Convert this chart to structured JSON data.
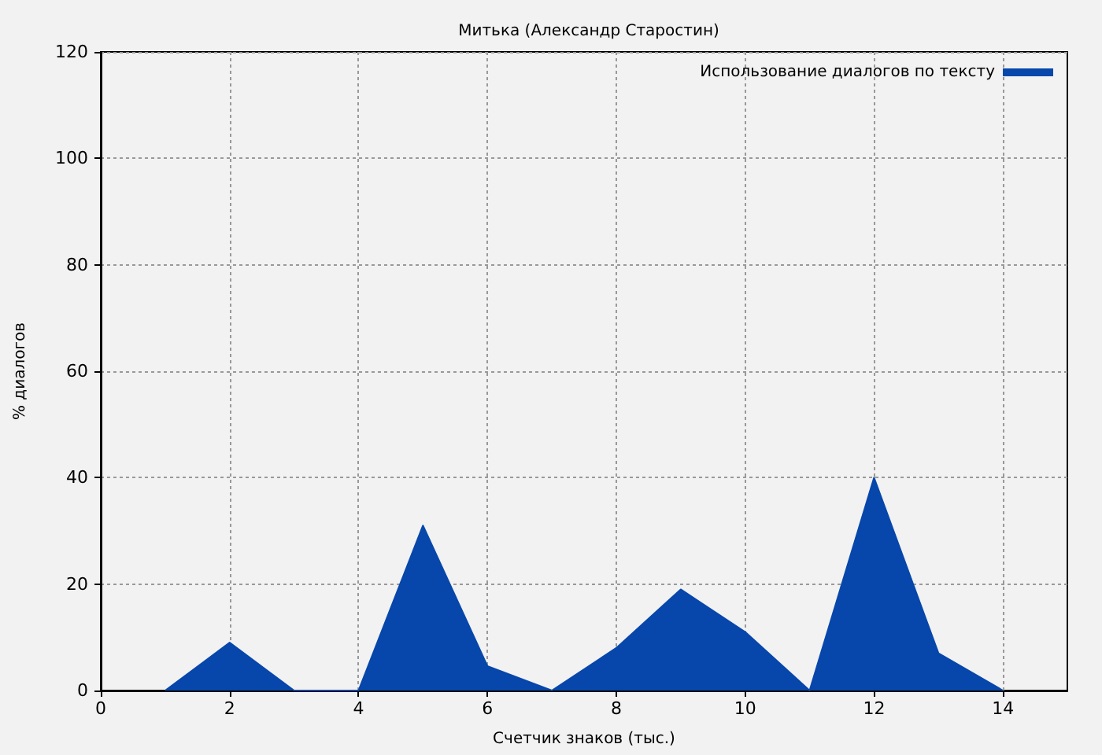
{
  "chart_data": {
    "type": "area",
    "title": "Митька (Александр Старостин)",
    "xlabel": "Счетчик знаков (тыс.)",
    "ylabel": "% диалогов",
    "x": [
      1,
      2,
      3,
      4,
      5,
      6,
      7,
      8,
      9,
      10,
      11,
      12,
      13,
      14
    ],
    "series": [
      {
        "name": "Использование диалогов по тексту",
        "color": "#0747ab",
        "values": [
          0,
          9,
          0,
          0,
          31,
          4.6,
          0,
          8,
          19,
          11,
          0,
          40,
          7,
          0
        ]
      }
    ],
    "xlim": [
      0,
      15
    ],
    "xticks": [
      0,
      2,
      4,
      6,
      8,
      10,
      12,
      14
    ],
    "ylim": [
      0,
      120
    ],
    "yticks": [
      0,
      20,
      40,
      60,
      80,
      100,
      120
    ],
    "grid": true,
    "legend": "top right",
    "marker": "none"
  }
}
